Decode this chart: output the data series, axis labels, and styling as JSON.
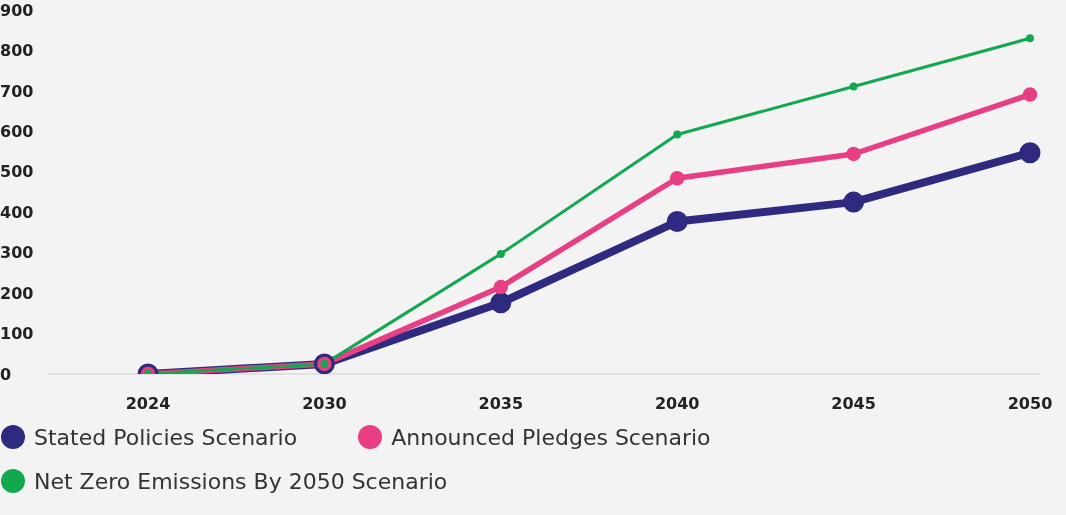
{
  "chart_data": {
    "type": "line",
    "categories": [
      "2024",
      "2030",
      "2035",
      "2040",
      "2045",
      "2050"
    ],
    "series": [
      {
        "name": "Stated Policies Scenario",
        "color": "#2e2a7f",
        "values": [
          0,
          25,
          176,
          377,
          425,
          547
        ]
      },
      {
        "name": "Announced Pledges Scenario",
        "color": "#e83e84",
        "values": [
          0,
          25,
          215,
          484,
          544,
          691
        ]
      },
      {
        "name": "Net Zero Emissions By 2050 Scenario",
        "color": "#12a84e",
        "values": [
          0,
          25,
          297,
          592,
          711,
          830
        ]
      }
    ],
    "ylim": [
      0,
      900
    ],
    "yticks": [
      0,
      100,
      200,
      300,
      400,
      500,
      600,
      700,
      800,
      900
    ],
    "grid": false,
    "legend": "bottom",
    "marker": "circle",
    "line_style": "solid"
  }
}
